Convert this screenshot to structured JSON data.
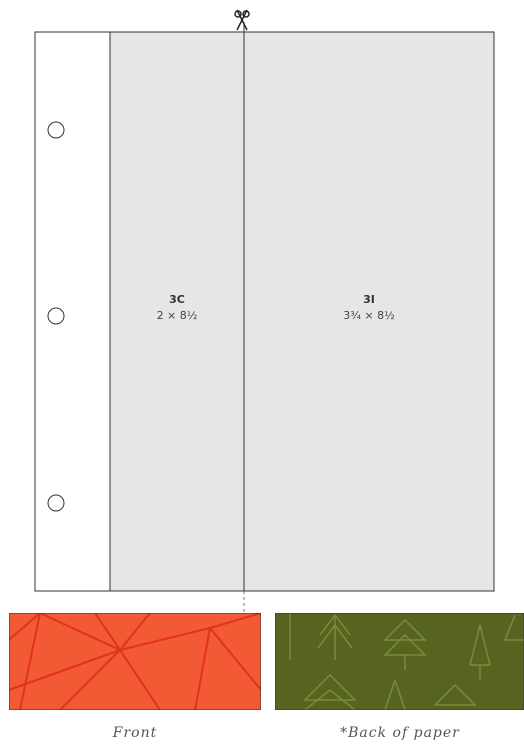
{
  "cards": [
    {
      "code": "3C",
      "size": "2 × 8½"
    },
    {
      "code": "3I",
      "size": "3¾ × 8½"
    }
  ],
  "swatches": [
    {
      "caption": "Front"
    },
    {
      "caption": "*Back of paper"
    }
  ]
}
